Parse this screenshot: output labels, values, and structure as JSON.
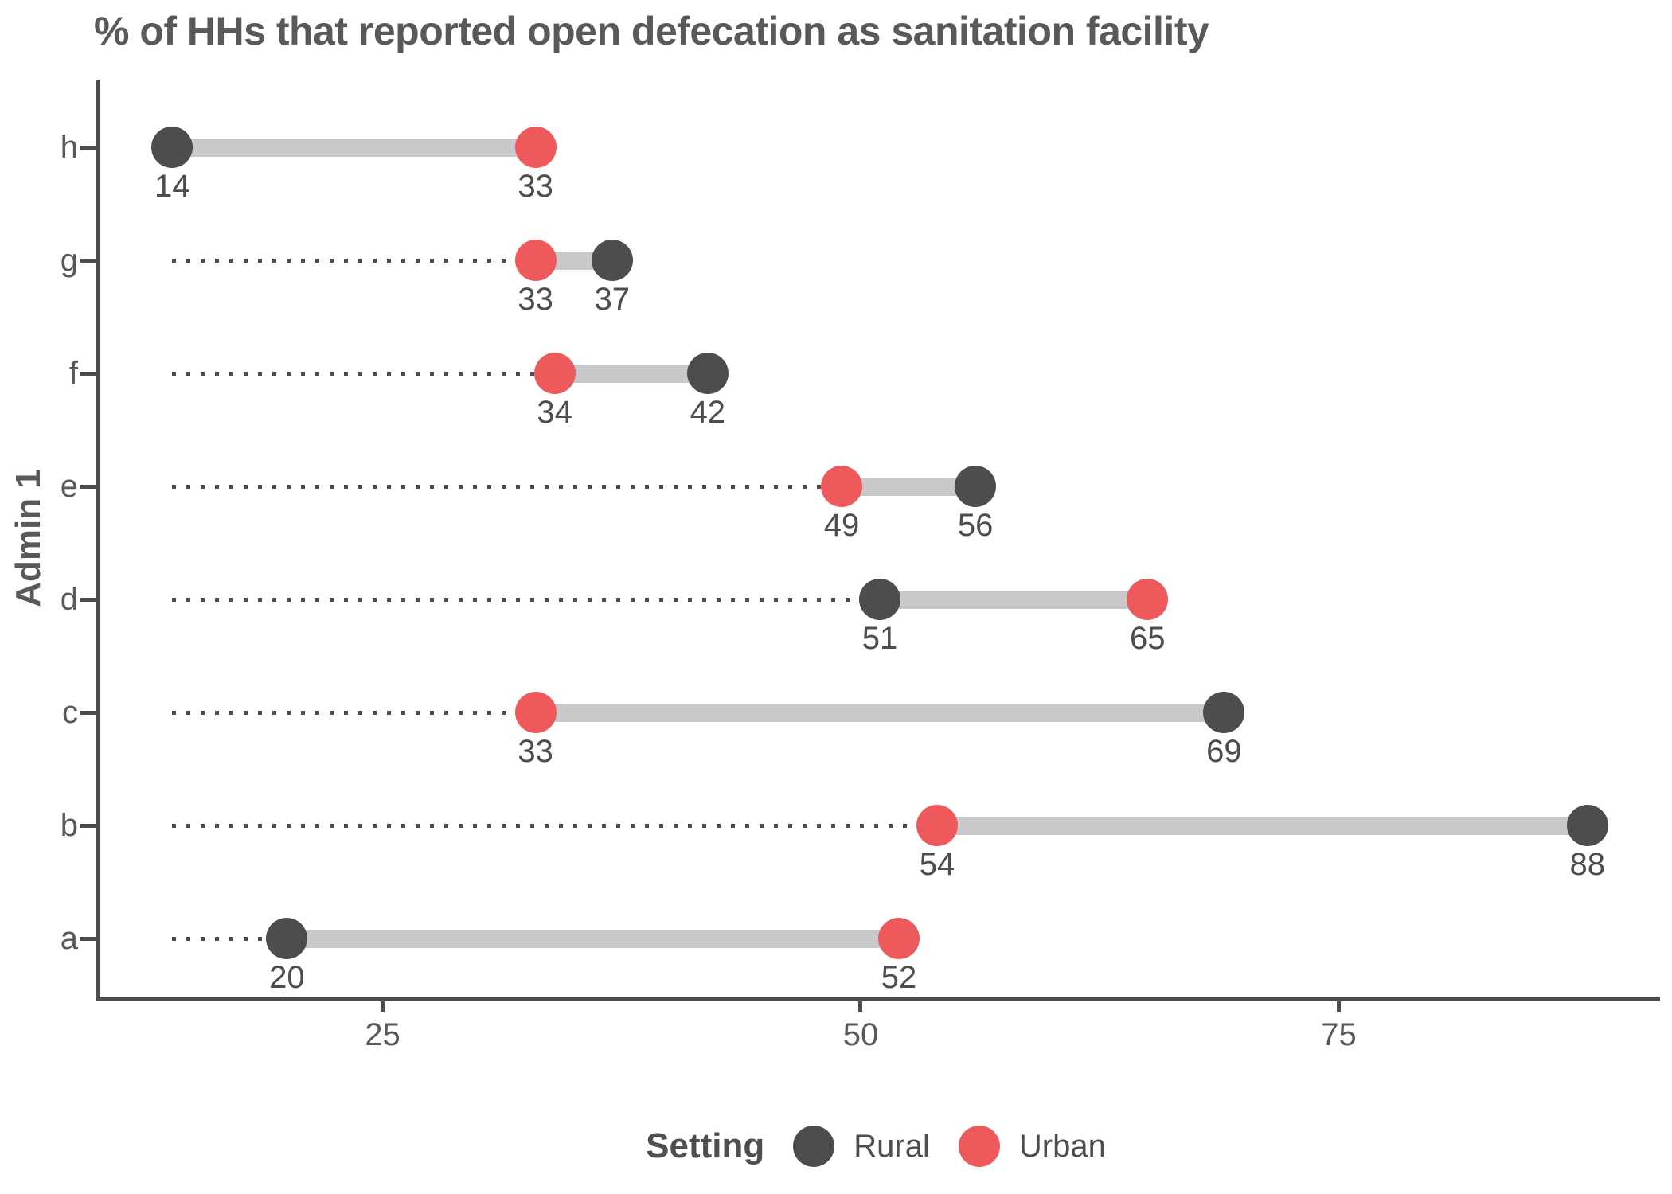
{
  "chart_data": {
    "type": "dumbbell",
    "title": "% of HHs that reported open defecation as sanitation facility",
    "xlabel": "",
    "ylabel": "Admin 1",
    "xlim": [
      10.2,
      91.8
    ],
    "xticks": [
      "25",
      "50",
      "75"
    ],
    "grid": false,
    "leader_line_start": 14,
    "categories": [
      "h",
      "g",
      "f",
      "e",
      "d",
      "c",
      "b",
      "a"
    ],
    "series": [
      {
        "name": "Rural",
        "color": "#4d4d4d",
        "values": [
          14,
          37,
          42,
          56,
          51,
          69,
          88,
          20
        ]
      },
      {
        "name": "Urban",
        "color": "#ee5a5b",
        "values": [
          33,
          33,
          34,
          49,
          65,
          33,
          54,
          52
        ]
      }
    ],
    "legend": {
      "title": "Setting",
      "position": "bottom",
      "items": [
        {
          "label": "Rural",
          "color": "#4d4d4d"
        },
        {
          "label": "Urban",
          "color": "#ee5a5b"
        }
      ]
    },
    "colors": {
      "connector": "#c9c9cc",
      "leader_line": "#4d4d4d",
      "axis_line": "#4d4d4d",
      "title_text": "#595959",
      "tick_text": "#595959",
      "value_text": "#4d4d4d"
    }
  }
}
